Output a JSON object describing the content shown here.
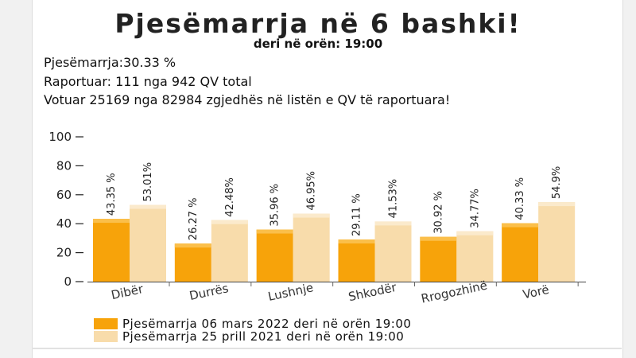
{
  "header": {
    "title": "Pjesëmarrja në 6 bashki!",
    "subtitle": "deri në orën: 19:00"
  },
  "stats": {
    "turnout": "Pjesëmarrja:30.33 %",
    "reported": "Raportuar: 111 nga 942 QV total",
    "voted": "Votuar 25169 nga 82984 zgjedhës në listën e QV të raportuara!"
  },
  "colors": {
    "series_2022": "#f7a30a",
    "series_2021": "#f8dcab"
  },
  "chart_data": {
    "type": "bar",
    "categories": [
      "Dibër",
      "Durrës",
      "Lushnje",
      "Shkodër",
      "Rrogozhinë",
      "Vorë"
    ],
    "series": [
      {
        "name": "Pjesëmarrja 06 mars 2022 deri në orën 19:00",
        "values": [
          43.35,
          26.27,
          35.96,
          29.11,
          30.92,
          40.33
        ],
        "labels": [
          "43.35 %",
          "26.27 %",
          "35.96 %",
          "29.11 %",
          "30.92 %",
          "40.33 %"
        ]
      },
      {
        "name": "Pjesëmarrja 25 prill 2021 deri në orën 19:00",
        "values": [
          53.01,
          42.48,
          46.95,
          41.53,
          34.77,
          54.9
        ],
        "labels": [
          "53.01%",
          "42.48%",
          "46.95%",
          "41.53%",
          "34.77%",
          "54.9%"
        ]
      }
    ],
    "yticks": [
      "0",
      "20",
      "40",
      "60",
      "80",
      "100"
    ],
    "ylim": [
      0,
      100
    ],
    "legend_position": "bottom"
  }
}
